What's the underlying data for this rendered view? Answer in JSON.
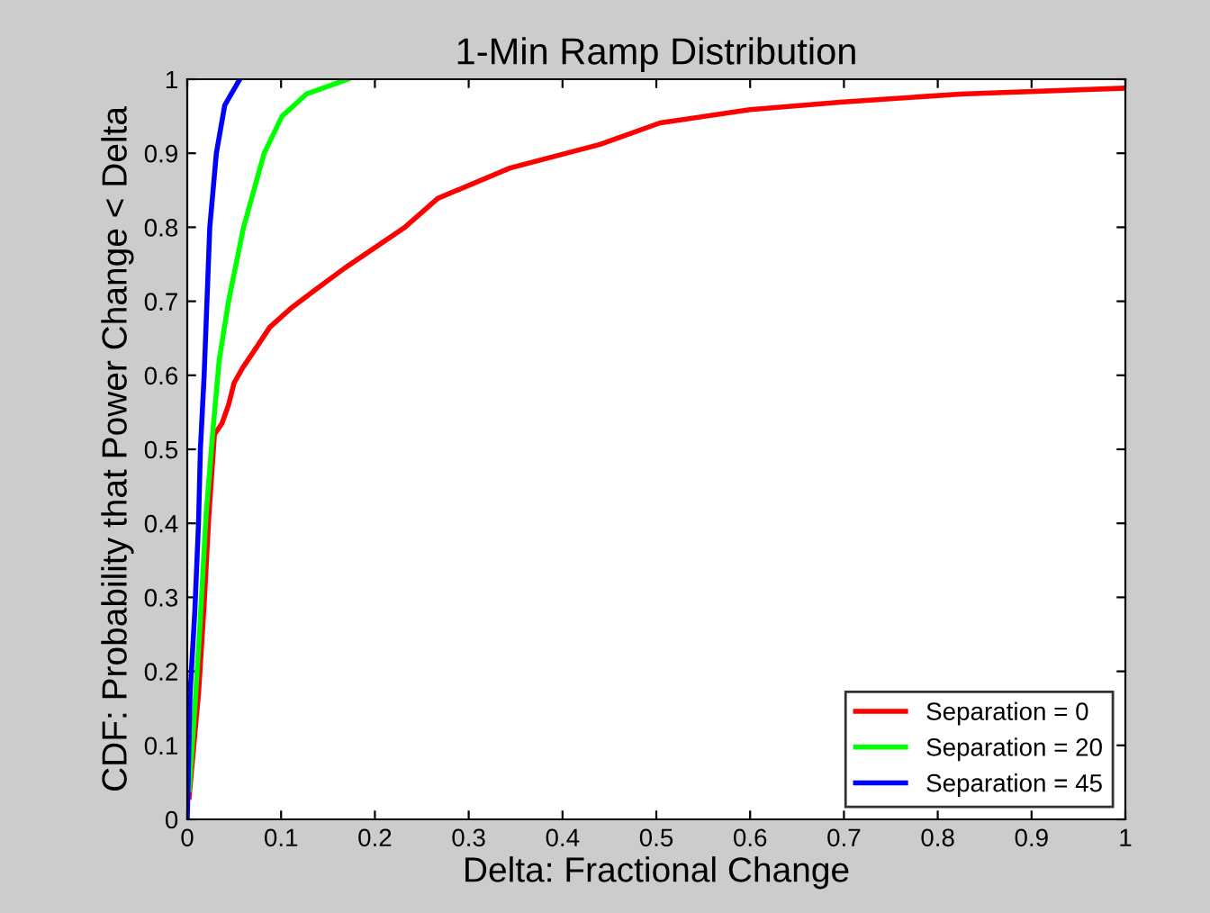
{
  "chart_data": {
    "type": "line",
    "title": "1-Min Ramp Distribution",
    "xlabel": "Delta: Fractional Change",
    "ylabel": "CDF: Probability that Power Change < Delta",
    "xlim": [
      0,
      1
    ],
    "ylim": [
      0,
      1
    ],
    "xticks": [
      0,
      0.1,
      0.2,
      0.3,
      0.4,
      0.5,
      0.6,
      0.7,
      0.8,
      0.9,
      1
    ],
    "yticks": [
      0,
      0.1,
      0.2,
      0.3,
      0.4,
      0.5,
      0.6,
      0.7,
      0.8,
      0.9,
      1
    ],
    "grid": false,
    "legend": "bottom right",
    "line_style": "solid",
    "marker": "none",
    "series": [
      {
        "name": "Separation = 0",
        "color": "#ff0000",
        "x": [
          0.002,
          0.012,
          0.018,
          0.023,
          0.029,
          0.037,
          0.044,
          0.05,
          0.059,
          0.075,
          0.088,
          0.11,
          0.136,
          0.168,
          0.232,
          0.267,
          0.344,
          0.44,
          0.504,
          0.6,
          0.696,
          0.824,
          1.0
        ],
        "values": [
          0.03,
          0.17,
          0.29,
          0.41,
          0.52,
          0.535,
          0.56,
          0.59,
          0.61,
          0.64,
          0.665,
          0.69,
          0.715,
          0.745,
          0.8,
          0.839,
          0.88,
          0.912,
          0.941,
          0.959,
          0.969,
          0.98,
          0.988
        ]
      },
      {
        "name": "Separation = 20",
        "color": "#00ff00",
        "x": [
          0.002,
          0.007,
          0.013,
          0.02,
          0.027,
          0.034,
          0.044,
          0.06,
          0.082,
          0.101,
          0.127,
          0.171
        ],
        "values": [
          0.04,
          0.13,
          0.25,
          0.41,
          0.52,
          0.62,
          0.7,
          0.8,
          0.9,
          0.95,
          0.98,
          1.0
        ]
      },
      {
        "name": "Separation = 45",
        "color": "#0000ff",
        "x": [
          0,
          0.003,
          0.008,
          0.012,
          0.014,
          0.018,
          0.021,
          0.024,
          0.031,
          0.04,
          0.056
        ],
        "values": [
          0,
          0.17,
          0.28,
          0.4,
          0.5,
          0.6,
          0.7,
          0.8,
          0.9,
          0.965,
          1.0
        ]
      }
    ]
  }
}
